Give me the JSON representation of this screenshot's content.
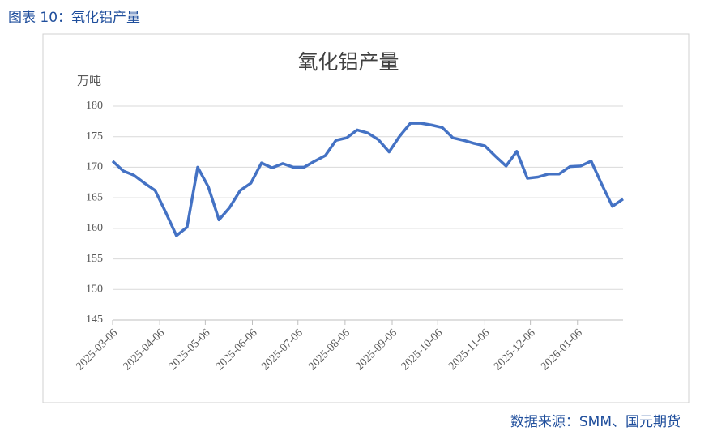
{
  "header": {
    "title": "图表 10：氧化铝产量"
  },
  "chart_data": {
    "type": "line",
    "title": "氧化铝产量",
    "y_label": "万吨",
    "x": [
      "2025-03-06",
      "2025-03-13",
      "2025-03-20",
      "2025-03-27",
      "2025-04-03",
      "2025-04-10",
      "2025-04-17",
      "2025-04-24",
      "2025-05-01",
      "2025-05-08",
      "2025-05-15",
      "2025-05-22",
      "2025-05-29",
      "2025-06-05",
      "2025-06-12",
      "2025-06-19",
      "2025-06-26",
      "2025-07-03",
      "2025-07-10",
      "2025-07-17",
      "2025-07-24",
      "2025-07-31",
      "2025-08-07",
      "2025-08-14",
      "2025-08-21",
      "2025-08-28",
      "2025-09-04",
      "2025-09-11",
      "2025-09-18",
      "2025-09-25",
      "2025-10-02",
      "2025-10-09",
      "2025-10-16",
      "2025-10-23",
      "2025-10-30",
      "2025-11-06",
      "2025-11-13",
      "2025-11-20",
      "2025-11-27",
      "2025-12-04",
      "2025-12-11",
      "2025-12-18",
      "2025-12-25",
      "2026-01-01",
      "2026-01-08",
      "2026-01-15",
      "2026-01-22",
      "2026-01-29",
      "2026-02-05"
    ],
    "series": [
      {
        "name": "氧化铝产量",
        "color": "#4472c4",
        "values": [
          171.0,
          169.4,
          168.7,
          167.4,
          166.2,
          162.6,
          158.8,
          160.2,
          170.0,
          166.8,
          161.4,
          163.4,
          166.2,
          167.4,
          170.7,
          169.9,
          170.6,
          170.0,
          170.0,
          171.0,
          171.9,
          174.4,
          174.8,
          176.1,
          175.6,
          174.5,
          172.5,
          175.1,
          177.2,
          177.2,
          176.9,
          176.5,
          174.8,
          174.4,
          173.9,
          173.5,
          171.8,
          170.2,
          172.6,
          168.2,
          168.4,
          168.9,
          168.9,
          170.1,
          170.2,
          171.0,
          167.2,
          163.6,
          164.8
        ]
      }
    ],
    "xlim": [
      "2025-03-06",
      "2026-02-05"
    ],
    "xticks": [
      "2025-03-06",
      "2025-04-06",
      "2025-05-06",
      "2025-06-06",
      "2025-07-06",
      "2025-08-06",
      "2025-09-06",
      "2025-10-06",
      "2025-11-06",
      "2025-12-06",
      "2026-01-06"
    ],
    "ylim": [
      145,
      180
    ],
    "yticks": [
      145,
      150,
      155,
      160,
      165,
      170,
      175,
      180
    ],
    "grid": true
  },
  "source": "数据来源：SMM、国元期货"
}
